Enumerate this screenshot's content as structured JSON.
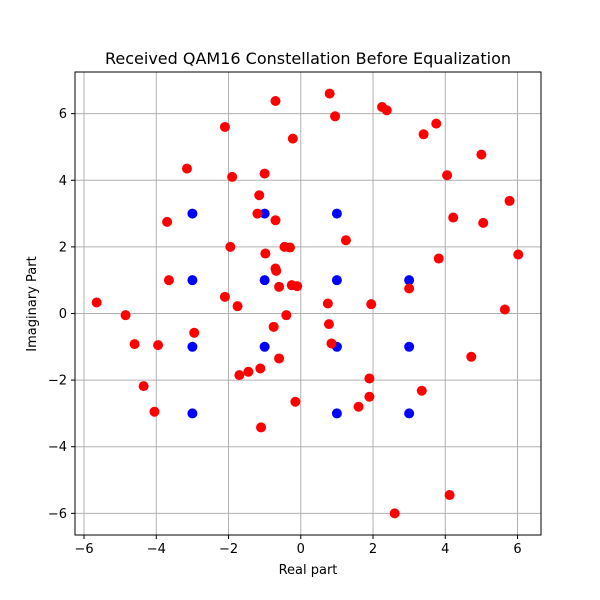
{
  "chart_data": {
    "type": "scatter",
    "title": "Received QAM16 Constellation Before Equalization",
    "xlabel": "Real part",
    "ylabel": "Imaginary Part",
    "xlim": [
      -6.25,
      6.65
    ],
    "ylim": [
      -6.65,
      7.25
    ],
    "x_ticks": [
      -6,
      -4,
      -2,
      0,
      2,
      4,
      6
    ],
    "y_ticks": [
      -6,
      -4,
      -2,
      0,
      2,
      4,
      6
    ],
    "grid": true,
    "series": [
      {
        "color": "#0000ff",
        "points": [
          [
            -3,
            3
          ],
          [
            -1,
            3
          ],
          [
            1,
            3
          ],
          [
            -3,
            1
          ],
          [
            -1,
            1
          ],
          [
            1,
            1
          ],
          [
            3,
            1
          ],
          [
            -3,
            -1
          ],
          [
            -1,
            -1
          ],
          [
            1,
            -1
          ],
          [
            3,
            -1
          ],
          [
            -3,
            -3
          ],
          [
            1,
            -3
          ],
          [
            3,
            -3
          ]
        ]
      },
      {
        "color": "#ff0000",
        "points": [
          [
            -5.65,
            0.33
          ],
          [
            -4.85,
            -0.05
          ],
          [
            -4.6,
            -0.92
          ],
          [
            -4.35,
            -2.18
          ],
          [
            -4.05,
            -2.95
          ],
          [
            -3.95,
            -0.95
          ],
          [
            -3.7,
            2.75
          ],
          [
            -3.65,
            1.0
          ],
          [
            -3.15,
            4.35
          ],
          [
            -2.95,
            -0.58
          ],
          [
            -2.1,
            5.6
          ],
          [
            -2.1,
            0.5
          ],
          [
            -1.95,
            2.0
          ],
          [
            -1.9,
            4.1
          ],
          [
            -1.75,
            0.22
          ],
          [
            -1.7,
            -1.85
          ],
          [
            -1.45,
            -1.75
          ],
          [
            -1.2,
            3.0
          ],
          [
            -1.15,
            3.55
          ],
          [
            -1.12,
            -1.65
          ],
          [
            -1.1,
            -3.42
          ],
          [
            -1.0,
            4.2
          ],
          [
            -0.98,
            1.8
          ],
          [
            -0.75,
            -0.4
          ],
          [
            -0.7,
            6.38
          ],
          [
            -0.7,
            2.8
          ],
          [
            -0.7,
            1.35
          ],
          [
            -0.68,
            1.28
          ],
          [
            -0.6,
            0.8
          ],
          [
            -0.6,
            -1.35
          ],
          [
            -0.45,
            2.0
          ],
          [
            -0.4,
            -0.05
          ],
          [
            -0.3,
            1.98
          ],
          [
            -0.25,
            0.85
          ],
          [
            -0.22,
            5.25
          ],
          [
            -0.15,
            -2.65
          ],
          [
            -0.1,
            0.82
          ],
          [
            0.75,
            0.3
          ],
          [
            0.78,
            -0.32
          ],
          [
            0.8,
            6.6
          ],
          [
            0.85,
            -0.9
          ],
          [
            0.95,
            5.92
          ],
          [
            1.25,
            2.2
          ],
          [
            1.6,
            -2.8
          ],
          [
            1.9,
            -1.95
          ],
          [
            1.9,
            -2.5
          ],
          [
            1.95,
            0.28
          ],
          [
            2.25,
            6.2
          ],
          [
            2.38,
            6.1
          ],
          [
            2.6,
            -6.0
          ],
          [
            3.0,
            0.75
          ],
          [
            3.35,
            -2.32
          ],
          [
            3.4,
            5.38
          ],
          [
            3.75,
            5.7
          ],
          [
            3.82,
            1.65
          ],
          [
            4.05,
            4.15
          ],
          [
            4.12,
            -5.45
          ],
          [
            4.22,
            2.88
          ],
          [
            4.72,
            -1.3
          ],
          [
            5.0,
            4.77
          ],
          [
            5.05,
            2.72
          ],
          [
            5.65,
            0.12
          ],
          [
            5.78,
            3.38
          ],
          [
            6.02,
            1.77
          ]
        ]
      }
    ]
  }
}
